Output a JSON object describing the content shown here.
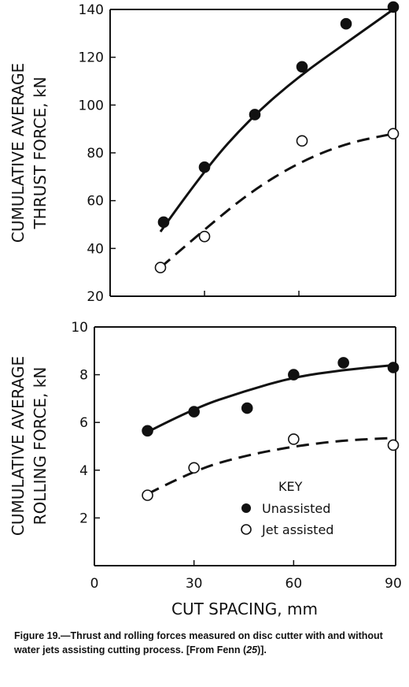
{
  "chart_data": [
    {
      "type": "scatter",
      "ylabel_line1": "CUMULATIVE AVERAGE",
      "ylabel_line2": "THRUST FORCE, kN",
      "ylim": [
        20,
        140
      ],
      "yticks": [
        20,
        40,
        60,
        80,
        100,
        120,
        140
      ],
      "xlim": [
        0,
        90
      ],
      "series": [
        {
          "name": "Unassisted",
          "marker": "filled",
          "curve": "solid",
          "x": [
            17,
            30,
            46,
            61,
            75,
            90
          ],
          "y": [
            51,
            74,
            96,
            116,
            134,
            141
          ]
        },
        {
          "name": "Jet assisted",
          "marker": "open",
          "curve": "dashed",
          "x": [
            16,
            30,
            61,
            90
          ],
          "y": [
            32,
            45,
            85,
            88
          ]
        }
      ],
      "fits": [
        {
          "series": "Unassisted",
          "x": [
            16,
            30,
            45,
            60,
            75,
            90
          ],
          "y": [
            47,
            73,
            95,
            112,
            126,
            140
          ]
        },
        {
          "series": "Jet assisted",
          "x": [
            16,
            30,
            45,
            60,
            75,
            90
          ],
          "y": [
            32,
            48,
            64,
            76,
            84,
            88
          ]
        }
      ]
    },
    {
      "type": "scatter",
      "ylabel_line1": "CUMULATIVE AVERAGE",
      "ylabel_line2": "ROLLING FORCE, kN",
      "ylim": [
        0,
        10
      ],
      "yticks": [
        2,
        4,
        6,
        8,
        10
      ],
      "xlim": [
        0,
        90
      ],
      "xticks": [
        0,
        30,
        60,
        90
      ],
      "xlabel": "CUT SPACING, mm",
      "series": [
        {
          "name": "Unassisted",
          "marker": "filled",
          "curve": "solid",
          "x": [
            16,
            30,
            46,
            60,
            75,
            90
          ],
          "y": [
            5.65,
            6.45,
            6.6,
            8.0,
            8.5,
            8.3
          ]
        },
        {
          "name": "Jet assisted",
          "marker": "open",
          "curve": "dashed",
          "x": [
            16,
            30,
            60,
            90
          ],
          "y": [
            2.95,
            4.1,
            5.3,
            5.05
          ]
        }
      ],
      "fits": [
        {
          "series": "Unassisted",
          "x": [
            16,
            30,
            45,
            60,
            75,
            90
          ],
          "y": [
            5.6,
            6.6,
            7.3,
            7.9,
            8.2,
            8.4
          ]
        },
        {
          "series": "Jet assisted",
          "x": [
            16,
            30,
            45,
            60,
            75,
            90
          ],
          "y": [
            3.0,
            4.0,
            4.6,
            5.0,
            5.25,
            5.35
          ]
        }
      ],
      "key_title": "KEY",
      "key_entries": [
        "Unassisted",
        "Jet assisted"
      ]
    }
  ],
  "caption": {
    "label": "Figure 19.",
    "text": "—Thrust and rolling forces measured on disc cutter with and without water jets assisting cutting process. [From Fenn (",
    "ref": "25",
    "close": ")]."
  }
}
